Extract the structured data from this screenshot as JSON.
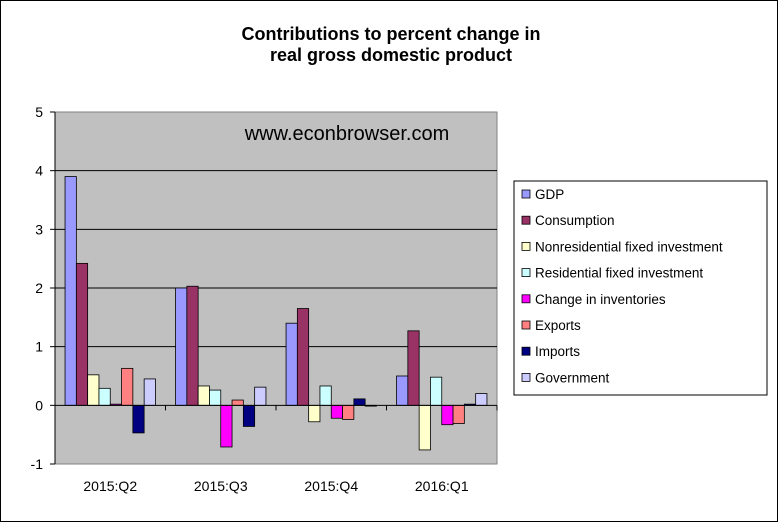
{
  "chart_data": {
    "type": "bar",
    "title": "Contributions to percent change in",
    "subtitle": "real gross domestic product",
    "watermark": "www.econbrowser.com",
    "xlabel": "",
    "ylabel": "",
    "ylim": [
      -1,
      5
    ],
    "y_ticks": [
      -1,
      0,
      1,
      2,
      3,
      4,
      5
    ],
    "grid": true,
    "legend_position": "right",
    "categories": [
      "2015:Q2",
      "2015:Q3",
      "2015:Q4",
      "2016:Q1"
    ],
    "series": [
      {
        "name": "GDP",
        "color": "#9999ff",
        "values": [
          3.9,
          2.0,
          1.4,
          0.5
        ]
      },
      {
        "name": "Consumption",
        "color": "#993366",
        "values": [
          2.42,
          2.03,
          1.65,
          1.27
        ]
      },
      {
        "name": "Nonresidential fixed investment",
        "color": "#ffffcc",
        "values": [
          0.52,
          0.33,
          -0.28,
          -0.76
        ]
      },
      {
        "name": "Residential fixed investment",
        "color": "#ccffff",
        "values": [
          0.29,
          0.26,
          0.33,
          0.48
        ]
      },
      {
        "name": "Change in inventories",
        "color": "#ff00ff",
        "values": [
          0.02,
          -0.71,
          -0.22,
          -0.33
        ]
      },
      {
        "name": "Exports",
        "color": "#ff8080",
        "values": [
          0.63,
          0.09,
          -0.24,
          -0.31
        ]
      },
      {
        "name": "Imports",
        "color": "#000080",
        "values": [
          -0.47,
          -0.36,
          0.11,
          0.02
        ]
      },
      {
        "name": "Government",
        "color": "#ccccff",
        "values": [
          0.45,
          0.31,
          0.0,
          0.2
        ]
      }
    ]
  }
}
